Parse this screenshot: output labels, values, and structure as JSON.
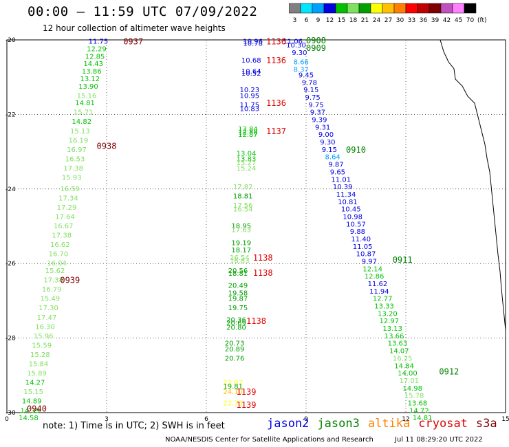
{
  "header": {
    "title": "00:00 – 11:59 UTC 07/09/2022",
    "subtitle": "12 hour collection of altimeter wave heights"
  },
  "colorbar": {
    "unit": "(ft)",
    "labels": [
      "3",
      "6",
      "9",
      "12",
      "15",
      "18",
      "21",
      "24",
      "27",
      "30",
      "33",
      "36",
      "39",
      "42",
      "45",
      "70"
    ],
    "colors": [
      "#808080",
      "#00e5ff",
      "#00a0ff",
      "#0000e0",
      "#00c000",
      "#80e060",
      "#00a000",
      "#ffff00",
      "#ffc000",
      "#ff8000",
      "#ff0000",
      "#c00000",
      "#800000",
      "#c050c0",
      "#ff80ff",
      "#000000"
    ]
  },
  "axes": {
    "x_ticks": [
      "0",
      "3",
      "6",
      "9",
      "12",
      "15"
    ],
    "y_ticks": [
      "-20",
      "-22",
      "-24",
      "-26",
      "-28",
      "-30"
    ]
  },
  "legend": [
    {
      "name": "jason2",
      "color": "#0000e0"
    },
    {
      "name": "jason3",
      "color": "#008000"
    },
    {
      "name": "altika",
      "color": "#ff8000"
    },
    {
      "name": "cryosat",
      "color": "#e00000"
    },
    {
      "name": "s3a",
      "color": "#800000"
    }
  ],
  "note": "note:  1) Time is in UTC;  2) SWH is in feet",
  "footer": {
    "source": "NOAA/NESDIS Center for Satellite Applications and Research",
    "timestamp": "Jul 11 08:29:20 UTC 2022"
  },
  "chart_data": {
    "type": "scatter",
    "xlim": [
      0,
      15
    ],
    "ylim": [
      -30,
      -20
    ],
    "time_labels": [
      {
        "text": "0937",
        "x": 3.8,
        "y": -20.05,
        "sat": "s3a"
      },
      {
        "text": "0938",
        "x": 3.0,
        "y": -22.85,
        "sat": "s3a"
      },
      {
        "text": "0939",
        "x": 1.9,
        "y": -26.45,
        "sat": "s3a"
      },
      {
        "text": "0940",
        "x": 0.9,
        "y": -29.9,
        "sat": "s3a"
      },
      {
        "text": "1136",
        "x": 8.1,
        "y": -20.05,
        "sat": "cryosat"
      },
      {
        "text": "1136",
        "x": 8.1,
        "y": -20.55,
        "sat": "cryosat"
      },
      {
        "text": "1136",
        "x": 8.1,
        "y": -21.7,
        "sat": "cryosat"
      },
      {
        "text": "1137",
        "x": 8.1,
        "y": -22.45,
        "sat": "cryosat"
      },
      {
        "text": "1138",
        "x": 7.7,
        "y": -25.85,
        "sat": "cryosat"
      },
      {
        "text": "1138",
        "x": 7.7,
        "y": -26.25,
        "sat": "cryosat"
      },
      {
        "text": "1138",
        "x": 7.5,
        "y": -27.55,
        "sat": "cryosat"
      },
      {
        "text": "1139",
        "x": 7.2,
        "y": -29.45,
        "sat": "cryosat"
      },
      {
        "text": "1139",
        "x": 7.2,
        "y": -29.8,
        "sat": "cryosat"
      },
      {
        "text": "0908",
        "x": 9.3,
        "y": -20.02,
        "sat": "jason3"
      },
      {
        "text": "0909",
        "x": 9.3,
        "y": -20.22,
        "sat": "jason3"
      },
      {
        "text": "0910",
        "x": 10.5,
        "y": -22.95,
        "sat": "jason3"
      },
      {
        "text": "0911",
        "x": 11.9,
        "y": -25.9,
        "sat": "jason3"
      },
      {
        "text": "0912",
        "x": 13.3,
        "y": -28.9,
        "sat": "jason3"
      }
    ],
    "tracks": [
      {
        "name": "s3a_track",
        "points": [
          {
            "x": 2.75,
            "y": -20.05,
            "v": 11.75
          },
          {
            "x": 2.7,
            "y": -20.25,
            "v": 12.29
          },
          {
            "x": 2.65,
            "y": -20.45,
            "v": 12.85
          },
          {
            "x": 2.6,
            "y": -20.65,
            "v": 14.43
          },
          {
            "x": 2.55,
            "y": -20.85,
            "v": 13.86
          },
          {
            "x": 2.5,
            "y": -21.05,
            "v": 13.12
          },
          {
            "x": 2.45,
            "y": -21.25,
            "v": 13.9
          },
          {
            "x": 2.4,
            "y": -21.5,
            "v": 15.16
          },
          {
            "x": 2.35,
            "y": -21.7,
            "v": 14.81
          },
          {
            "x": 2.3,
            "y": -21.95,
            "v": 15.71
          },
          {
            "x": 2.25,
            "y": -22.2,
            "v": 14.82
          },
          {
            "x": 2.2,
            "y": -22.45,
            "v": 15.13
          },
          {
            "x": 2.15,
            "y": -22.7,
            "v": 16.19
          },
          {
            "x": 2.1,
            "y": -22.95,
            "v": 16.97
          },
          {
            "x": 2.05,
            "y": -23.2,
            "v": 16.53
          },
          {
            "x": 2.0,
            "y": -23.45,
            "v": 17.38
          },
          {
            "x": 1.95,
            "y": -23.7,
            "v": 15.93
          },
          {
            "x": 1.9,
            "y": -24.0,
            "v": 16.59
          },
          {
            "x": 1.85,
            "y": -24.25,
            "v": 17.34
          },
          {
            "x": 1.8,
            "y": -24.5,
            "v": 17.29
          },
          {
            "x": 1.75,
            "y": -24.75,
            "v": 17.64
          },
          {
            "x": 1.7,
            "y": -25.0,
            "v": 16.67
          },
          {
            "x": 1.65,
            "y": -25.25,
            "v": 17.38
          },
          {
            "x": 1.6,
            "y": -25.5,
            "v": 16.62
          },
          {
            "x": 1.55,
            "y": -25.75,
            "v": 16.7
          },
          {
            "x": 1.5,
            "y": -26.0,
            "v": 16.04
          },
          {
            "x": 1.45,
            "y": -26.2,
            "v": 15.62
          },
          {
            "x": 1.4,
            "y": -26.45,
            "v": 17.38
          },
          {
            "x": 1.35,
            "y": -26.7,
            "v": 16.79
          },
          {
            "x": 1.3,
            "y": -26.95,
            "v": 15.49
          },
          {
            "x": 1.25,
            "y": -27.2,
            "v": 17.3
          },
          {
            "x": 1.2,
            "y": -27.45,
            "v": 17.47
          },
          {
            "x": 1.15,
            "y": -27.7,
            "v": 16.3
          },
          {
            "x": 1.1,
            "y": -27.95,
            "v": 15.96
          },
          {
            "x": 1.05,
            "y": -28.2,
            "v": 15.59
          },
          {
            "x": 1.0,
            "y": -28.45,
            "v": 15.28
          },
          {
            "x": 0.95,
            "y": -28.7,
            "v": 15.84
          },
          {
            "x": 0.9,
            "y": -28.95,
            "v": 15.89
          },
          {
            "x": 0.85,
            "y": -29.2,
            "v": 14.27
          },
          {
            "x": 0.8,
            "y": -29.45,
            "v": 15.15
          },
          {
            "x": 0.75,
            "y": -29.7,
            "v": 14.89
          },
          {
            "x": 0.7,
            "y": -29.95,
            "v": 14.39
          },
          {
            "x": 0.65,
            "y": -30.15,
            "v": 14.58
          }
        ]
      },
      {
        "name": "cryosat_track",
        "points": [
          {
            "x": 7.4,
            "y": -20.05,
            "v": 10.96
          },
          {
            "x": 7.4,
            "y": -20.1,
            "v": 10.78
          },
          {
            "x": 7.35,
            "y": -20.55,
            "v": 10.68
          },
          {
            "x": 7.35,
            "y": -20.85,
            "v": 10.64
          },
          {
            "x": 7.35,
            "y": -20.9,
            "v": 10.52
          },
          {
            "x": 7.3,
            "y": -21.35,
            "v": 10.23
          },
          {
            "x": 7.3,
            "y": -21.5,
            "v": 10.95
          },
          {
            "x": 7.3,
            "y": -21.75,
            "v": 11.75
          },
          {
            "x": 7.3,
            "y": -21.85,
            "v": 10.83
          },
          {
            "x": 7.25,
            "y": -22.4,
            "v": 13.84
          },
          {
            "x": 7.25,
            "y": -22.48,
            "v": 12.88
          },
          {
            "x": 7.25,
            "y": -22.55,
            "v": 12.87
          },
          {
            "x": 7.2,
            "y": -23.05,
            "v": 13.04
          },
          {
            "x": 7.2,
            "y": -23.2,
            "v": 13.83
          },
          {
            "x": 7.2,
            "y": -23.3,
            "v": 15.27
          },
          {
            "x": 7.2,
            "y": -23.45,
            "v": 15.24
          },
          {
            "x": 7.1,
            "y": -23.95,
            "v": 17.82
          },
          {
            "x": 7.1,
            "y": -24.2,
            "v": 18.81
          },
          {
            "x": 7.1,
            "y": -24.45,
            "v": 17.56
          },
          {
            "x": 7.1,
            "y": -24.55,
            "v": 16.54
          },
          {
            "x": 7.05,
            "y": -25.0,
            "v": 18.95
          },
          {
            "x": 7.05,
            "y": -25.1,
            "v": 17.63
          },
          {
            "x": 7.05,
            "y": -25.45,
            "v": 19.19
          },
          {
            "x": 7.05,
            "y": -25.65,
            "v": 18.17
          },
          {
            "x": 7.0,
            "y": -25.85,
            "v": 16.54
          },
          {
            "x": 7.0,
            "y": -25.93,
            "v": 16.83
          },
          {
            "x": 6.95,
            "y": -26.2,
            "v": 20.56
          },
          {
            "x": 6.95,
            "y": -26.27,
            "v": 18.81
          },
          {
            "x": 6.95,
            "y": -26.6,
            "v": 20.49
          },
          {
            "x": 6.95,
            "y": -26.8,
            "v": 19.58
          },
          {
            "x": 6.95,
            "y": -26.95,
            "v": 19.87
          },
          {
            "x": 6.95,
            "y": -27.2,
            "v": 19.75
          },
          {
            "x": 6.9,
            "y": -27.52,
            "v": 20.36
          },
          {
            "x": 6.9,
            "y": -27.6,
            "v": 20.69
          },
          {
            "x": 6.9,
            "y": -27.72,
            "v": 20.8
          },
          {
            "x": 6.85,
            "y": -28.15,
            "v": 20.73
          },
          {
            "x": 6.85,
            "y": -28.3,
            "v": 20.89
          },
          {
            "x": 6.85,
            "y": -28.55,
            "v": 20.76
          },
          {
            "x": 6.8,
            "y": -29.2,
            "v": 22.07
          },
          {
            "x": 6.8,
            "y": -29.3,
            "v": 19.81
          },
          {
            "x": 6.8,
            "y": -29.45,
            "v": 24.1
          },
          {
            "x": 6.8,
            "y": -29.75,
            "v": 22.73
          }
        ]
      },
      {
        "name": "jason3_track",
        "points": [
          {
            "x": 8.6,
            "y": -20.05,
            "v": 11.06
          },
          {
            "x": 8.7,
            "y": -20.15,
            "v": 10.3
          },
          {
            "x": 8.8,
            "y": -20.35,
            "v": 9.3
          },
          {
            "x": 8.85,
            "y": -20.6,
            "v": 8.66
          },
          {
            "x": 8.85,
            "y": -20.8,
            "v": 8.37
          },
          {
            "x": 9.0,
            "y": -20.95,
            "v": 9.45
          },
          {
            "x": 9.1,
            "y": -21.15,
            "v": 9.78
          },
          {
            "x": 9.15,
            "y": -21.35,
            "v": 9.15
          },
          {
            "x": 9.2,
            "y": -21.55,
            "v": 9.75
          },
          {
            "x": 9.3,
            "y": -21.75,
            "v": 9.75
          },
          {
            "x": 9.35,
            "y": -21.95,
            "v": 9.37
          },
          {
            "x": 9.4,
            "y": -22.15,
            "v": 9.39
          },
          {
            "x": 9.5,
            "y": -22.35,
            "v": 9.31
          },
          {
            "x": 9.6,
            "y": -22.55,
            "v": 9.0
          },
          {
            "x": 9.65,
            "y": -22.75,
            "v": 9.3
          },
          {
            "x": 9.7,
            "y": -22.95,
            "v": 9.15
          },
          {
            "x": 9.8,
            "y": -23.15,
            "v": 8.64
          },
          {
            "x": 9.9,
            "y": -23.35,
            "v": 9.87
          },
          {
            "x": 9.95,
            "y": -23.55,
            "v": 9.65
          },
          {
            "x": 10.05,
            "y": -23.75,
            "v": 11.01
          },
          {
            "x": 10.1,
            "y": -23.95,
            "v": 10.39
          },
          {
            "x": 10.2,
            "y": -24.15,
            "v": 11.34
          },
          {
            "x": 10.25,
            "y": -24.35,
            "v": 10.81
          },
          {
            "x": 10.35,
            "y": -24.55,
            "v": 10.45
          },
          {
            "x": 10.4,
            "y": -24.75,
            "v": 10.98
          },
          {
            "x": 10.5,
            "y": -24.95,
            "v": 10.57
          },
          {
            "x": 10.55,
            "y": -25.15,
            "v": 9.88
          },
          {
            "x": 10.65,
            "y": -25.35,
            "v": 11.4
          },
          {
            "x": 10.7,
            "y": -25.55,
            "v": 11.05
          },
          {
            "x": 10.8,
            "y": -25.75,
            "v": 10.87
          },
          {
            "x": 10.9,
            "y": -25.95,
            "v": 9.97
          },
          {
            "x": 11.0,
            "y": -26.15,
            "v": 12.14
          },
          {
            "x": 11.05,
            "y": -26.35,
            "v": 12.86
          },
          {
            "x": 11.15,
            "y": -26.55,
            "v": 11.62
          },
          {
            "x": 11.2,
            "y": -26.75,
            "v": 11.94
          },
          {
            "x": 11.3,
            "y": -26.95,
            "v": 12.77
          },
          {
            "x": 11.35,
            "y": -27.15,
            "v": 13.33
          },
          {
            "x": 11.45,
            "y": -27.35,
            "v": 13.2
          },
          {
            "x": 11.5,
            "y": -27.55,
            "v": 12.97
          },
          {
            "x": 11.6,
            "y": -27.75,
            "v": 13.13
          },
          {
            "x": 11.65,
            "y": -27.95,
            "v": 13.66
          },
          {
            "x": 11.75,
            "y": -28.15,
            "v": 13.63
          },
          {
            "x": 11.8,
            "y": -28.35,
            "v": 14.07
          },
          {
            "x": 11.9,
            "y": -28.55,
            "v": 16.25
          },
          {
            "x": 11.95,
            "y": -28.75,
            "v": 14.84
          },
          {
            "x": 12.05,
            "y": -28.95,
            "v": 14.0
          },
          {
            "x": 12.1,
            "y": -29.15,
            "v": 17.01
          },
          {
            "x": 12.2,
            "y": -29.35,
            "v": 14.98
          },
          {
            "x": 12.25,
            "y": -29.55,
            "v": 15.78
          },
          {
            "x": 12.35,
            "y": -29.75,
            "v": 13.68
          },
          {
            "x": 12.4,
            "y": -29.95,
            "v": 14.72
          },
          {
            "x": 12.5,
            "y": -30.15,
            "v": 14.81
          }
        ]
      }
    ]
  }
}
